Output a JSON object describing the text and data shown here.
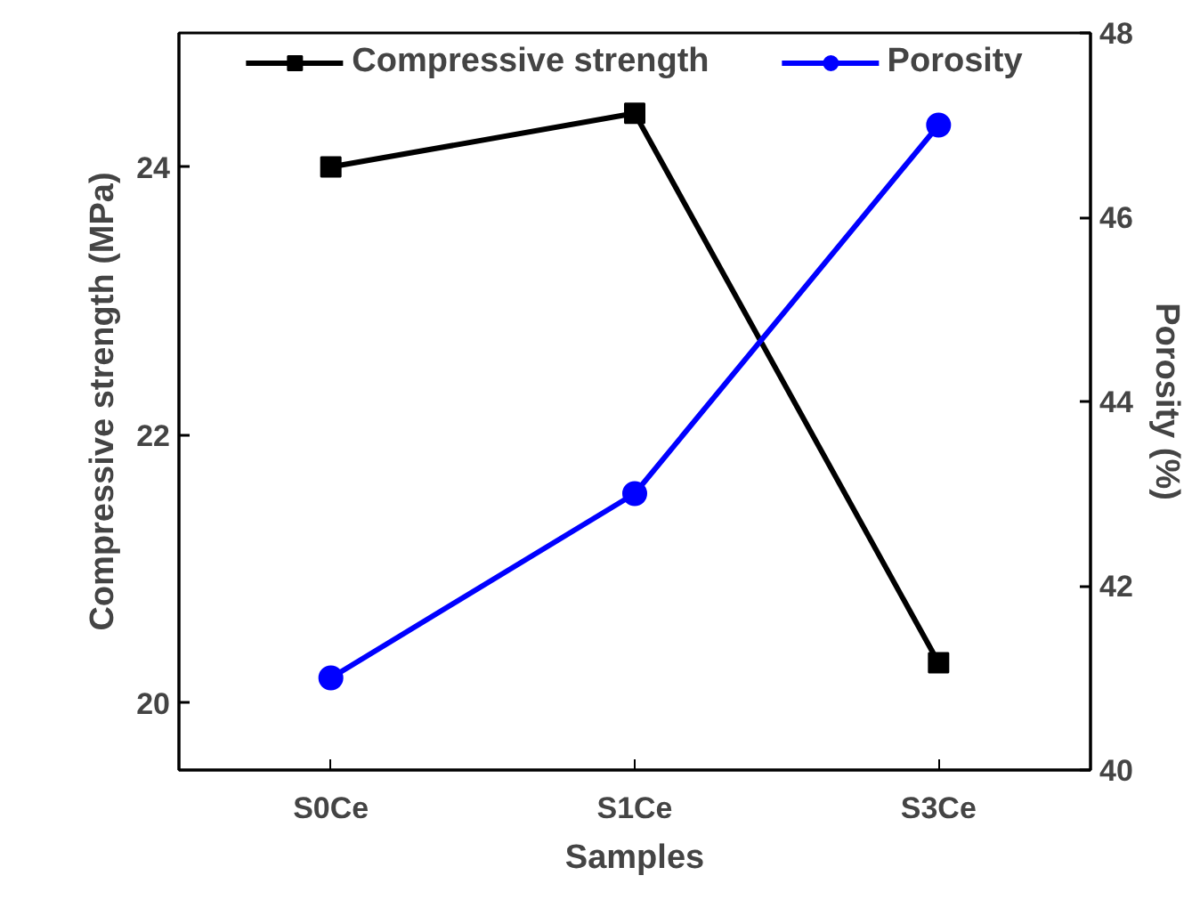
{
  "chart_data": {
    "type": "line",
    "xlabel": "Samples",
    "ylabel": "Compressive strength (MPa)",
    "y2label": "Porosity (%)",
    "categories": [
      "S0Ce",
      "S1Ce",
      "S3Ce"
    ],
    "series": [
      {
        "name": "Compressive strength",
        "color": "#000000",
        "marker": "square",
        "values": [
          24.0,
          24.4,
          20.3
        ]
      },
      {
        "name": "Porosity",
        "color": "#0000ff",
        "marker": "circle",
        "axis": "y2",
        "values": [
          41.0,
          43.0,
          47.0
        ]
      }
    ],
    "ylim": [
      19.5,
      25
    ],
    "yticks": [
      20,
      22,
      24
    ],
    "y2lim": [
      40,
      48
    ],
    "y2ticks": [
      40,
      42,
      44,
      46,
      48
    ],
    "legend": "top",
    "grid": false,
    "line_style": "solid"
  }
}
